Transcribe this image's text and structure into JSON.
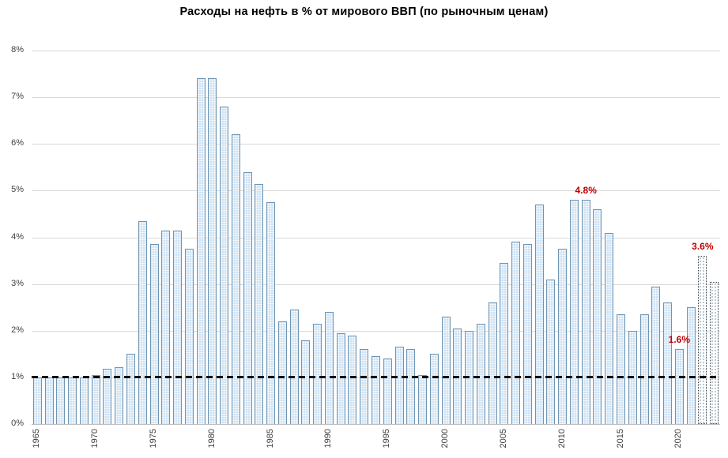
{
  "chart_data": {
    "type": "bar",
    "title": "Расходы на нефть в % от мирового ВВП (по рыночным ценам)",
    "xlabel": "",
    "ylabel": "",
    "ylim": [
      0,
      8
    ],
    "yticks": [
      0,
      1,
      2,
      3,
      4,
      5,
      6,
      7,
      8
    ],
    "ytick_labels": [
      "0%",
      "1%",
      "2%",
      "3%",
      "4%",
      "5%",
      "6%",
      "7%",
      "8%"
    ],
    "x_tick_years": [
      1965,
      1970,
      1975,
      1980,
      1985,
      1990,
      1995,
      2000,
      2005,
      2010,
      2015,
      2020
    ],
    "grid": true,
    "legend": "none",
    "years": [
      1965,
      1966,
      1967,
      1968,
      1969,
      1970,
      1971,
      1972,
      1973,
      1974,
      1975,
      1976,
      1977,
      1978,
      1979,
      1980,
      1981,
      1982,
      1983,
      1984,
      1985,
      1986,
      1987,
      1988,
      1989,
      1990,
      1991,
      1992,
      1993,
      1994,
      1995,
      1996,
      1997,
      1998,
      1999,
      2000,
      2001,
      2002,
      2003,
      2004,
      2005,
      2006,
      2007,
      2008,
      2009,
      2010,
      2011,
      2012,
      2013,
      2014,
      2015,
      2016,
      2017,
      2018,
      2019,
      2020,
      2021,
      2022,
      2023
    ],
    "values": [
      1.0,
      1.0,
      1.0,
      1.0,
      1.0,
      1.05,
      1.18,
      1.22,
      1.5,
      4.35,
      3.85,
      4.15,
      4.15,
      3.75,
      7.4,
      7.4,
      6.8,
      6.2,
      5.4,
      5.15,
      4.75,
      2.2,
      2.45,
      1.8,
      2.15,
      2.4,
      1.95,
      1.9,
      1.6,
      1.45,
      1.4,
      1.65,
      1.6,
      1.05,
      1.5,
      2.3,
      2.05,
      2.0,
      2.15,
      2.6,
      3.45,
      3.9,
      3.85,
      4.7,
      3.1,
      3.75,
      4.8,
      4.8,
      4.6,
      4.1,
      2.35,
      2.0,
      2.35,
      2.95,
      2.6,
      1.6,
      2.5,
      3.6,
      3.05
    ],
    "forecast_years": [
      2022,
      2023
    ],
    "reference_line": {
      "value": 1,
      "style": "dashed",
      "color": "#000000"
    },
    "annotations": [
      {
        "year": 2012,
        "label": "4.8%"
      },
      {
        "year": 2020,
        "label": "1.6%"
      },
      {
        "year": 2022,
        "label": "3.6%"
      }
    ],
    "colors": {
      "bar_fill": "#cfe2f3",
      "bar_border": "#7096b4",
      "forecast_fill": "#ffffff",
      "forecast_border": "#404040",
      "annotation": "#c00000",
      "gridline": "#d9d9d9",
      "axis_text": "#404040",
      "title_text": "#000000"
    }
  }
}
